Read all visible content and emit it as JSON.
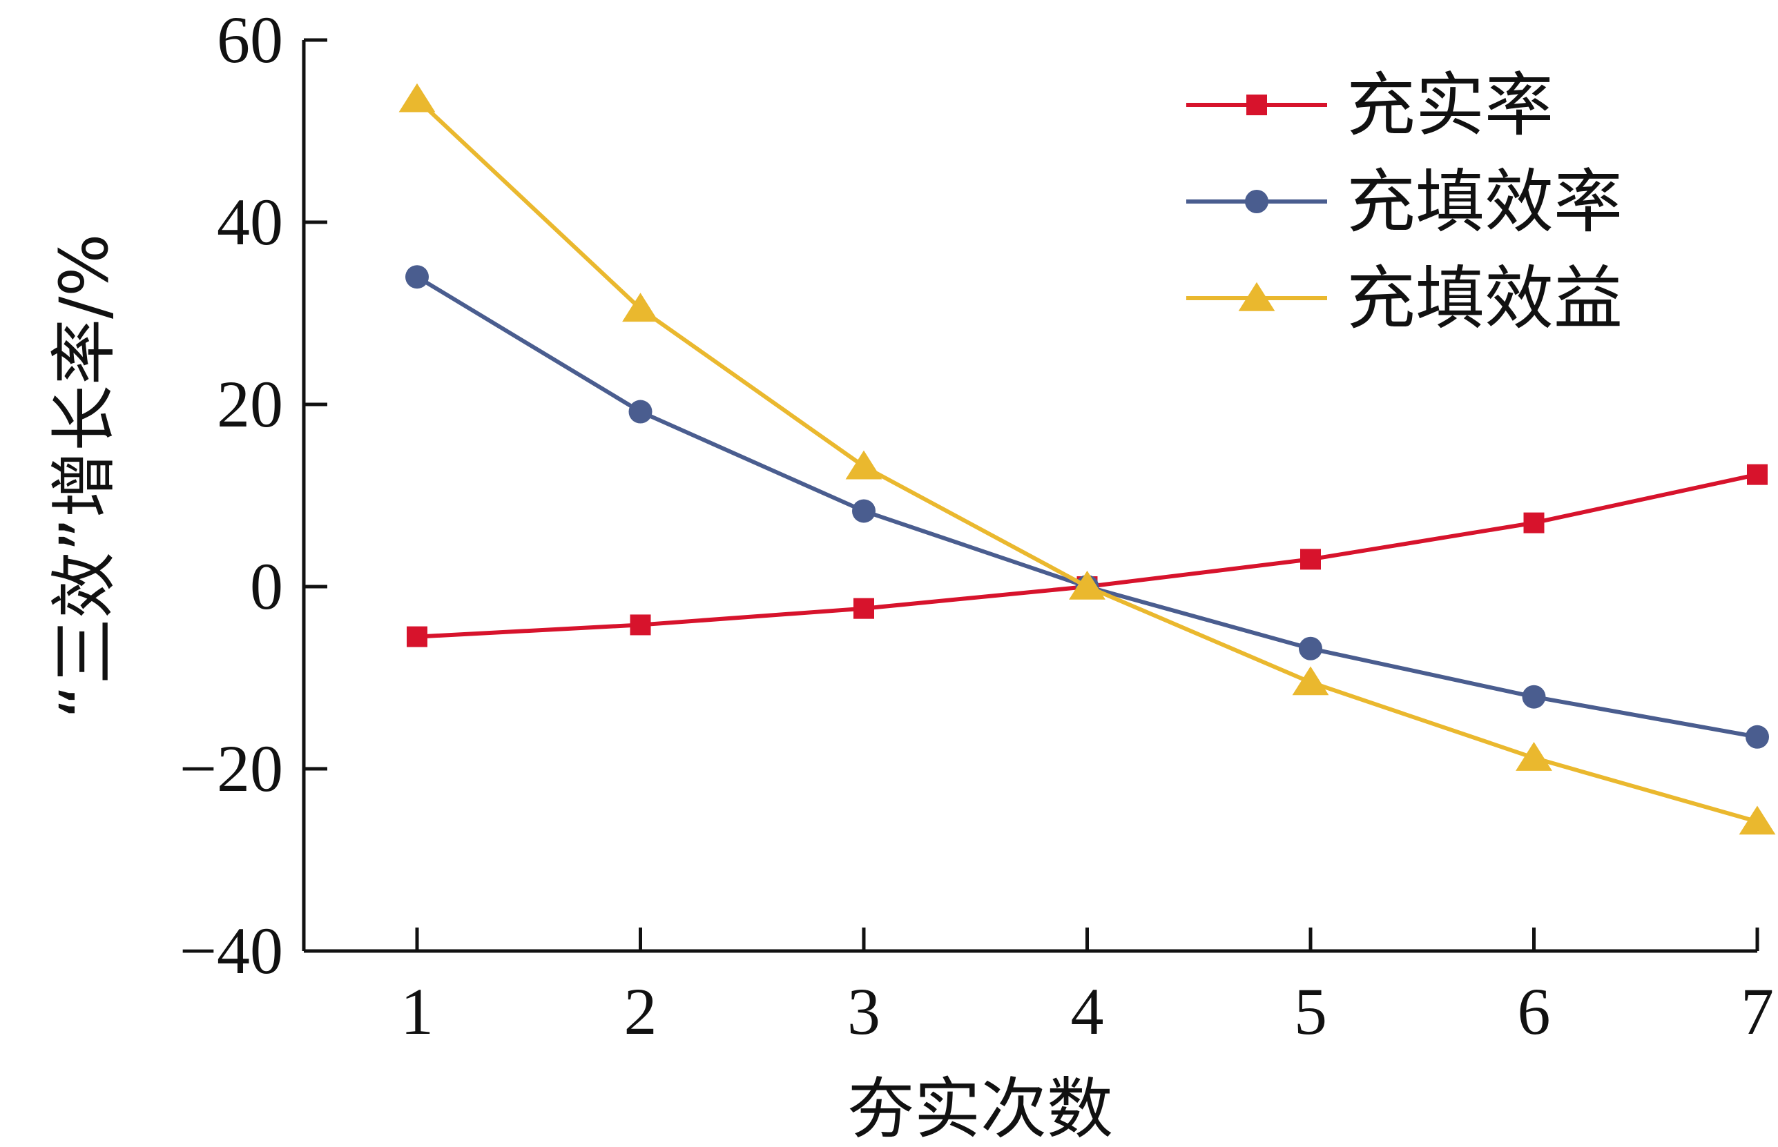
{
  "chart_data": {
    "type": "line",
    "title": "",
    "xlabel": "夯实次数",
    "ylabel": "“三效”增长率/%",
    "x": [
      1,
      2,
      3,
      4,
      5,
      6,
      7
    ],
    "xticks": [
      "1",
      "2",
      "3",
      "4",
      "5",
      "6",
      "7"
    ],
    "ylim": [
      -40,
      60
    ],
    "yticks": [
      {
        "value": 60,
        "label": "60"
      },
      {
        "value": 40,
        "label": "40"
      },
      {
        "value": 20,
        "label": "20"
      },
      {
        "value": 0,
        "label": "0"
      },
      {
        "value": -20,
        "label": "−20"
      },
      {
        "value": -40,
        "label": "−40"
      }
    ],
    "legend_position": "top-right",
    "grid": false,
    "series": [
      {
        "name": "充实率",
        "color": "#d7132c",
        "marker": "square",
        "values": [
          -5.5,
          -4.2,
          -2.4,
          0,
          3,
          7,
          12.3
        ]
      },
      {
        "name": "充填效率",
        "color": "#4a5d8f",
        "marker": "circle",
        "values": [
          34,
          19.2,
          8.3,
          0,
          -6.8,
          -12.1,
          -16.5
        ]
      },
      {
        "name": "充填效益",
        "color": "#eab82e",
        "marker": "triangle",
        "values": [
          53.5,
          30.5,
          13.2,
          0,
          -10.5,
          -18.8,
          -25.8
        ]
      }
    ]
  }
}
